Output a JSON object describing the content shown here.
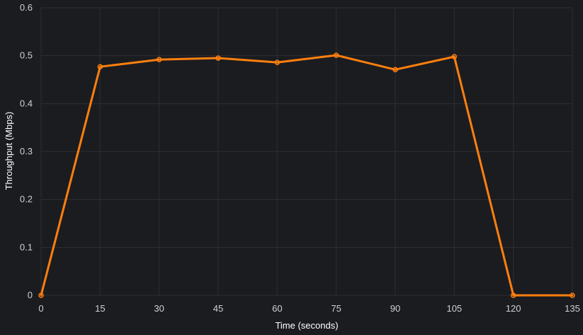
{
  "chart_data": {
    "type": "line",
    "title": "",
    "xlabel": "Time (seconds)",
    "ylabel": "Throughput (Mbps)",
    "xlim": [
      0,
      135
    ],
    "ylim": [
      0,
      0.6
    ],
    "x_ticks": [
      "0",
      "15",
      "30",
      "45",
      "60",
      "75",
      "90",
      "105",
      "120",
      "135"
    ],
    "y_ticks": [
      "0",
      "0.1",
      "0.2",
      "0.3",
      "0.4",
      "0.5",
      "0.6"
    ],
    "grid": true,
    "legend": "none",
    "series": [
      {
        "color": "#ff7f0e",
        "x": [
          0,
          15,
          30,
          45,
          60,
          75,
          90,
          105,
          120,
          135
        ],
        "y": [
          0.0,
          0.477,
          0.492,
          0.495,
          0.486,
          0.501,
          0.471,
          0.498,
          0.0,
          0.0
        ]
      }
    ],
    "colors": {
      "background": "#1b1c20",
      "grid": "#2c2e33",
      "tick_text": "#cfd0d4",
      "axis_title": "#ffffff"
    }
  }
}
